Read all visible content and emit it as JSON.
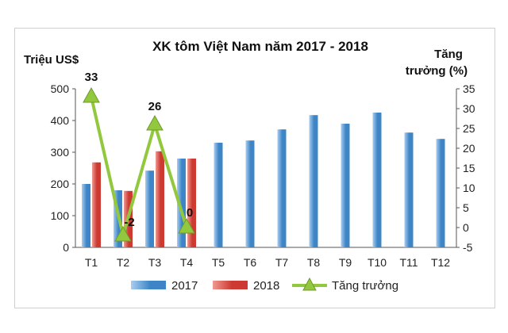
{
  "chart_data": {
    "type": "bar",
    "title": "XK tôm Việt Nam năm 2017  - 2018",
    "ylabel_left": "Triệu US$",
    "ylabel_right_line1": "Tăng",
    "ylabel_right_line2": "trưởng (%)",
    "ylim_left": [
      0,
      500
    ],
    "yticks_left": [
      0,
      100,
      200,
      300,
      400,
      500
    ],
    "ylim_right": [
      -5,
      35
    ],
    "yticks_right": [
      -5,
      0,
      5,
      10,
      15,
      20,
      25,
      30,
      35
    ],
    "categories": [
      "T1",
      "T2",
      "T3",
      "T4",
      "T5",
      "T6",
      "T7",
      "T8",
      "T9",
      "T10",
      "T11",
      "T12"
    ],
    "series": [
      {
        "name": "2017",
        "type": "bar",
        "axis": "left",
        "color": "#3d85c6",
        "values": [
          200,
          180,
          242,
          280,
          330,
          337,
          372,
          417,
          390,
          425,
          362,
          342
        ]
      },
      {
        "name": "2018",
        "type": "bar",
        "axis": "left",
        "color": "#cc3a32",
        "values": [
          268,
          178,
          303,
          280,
          null,
          null,
          null,
          null,
          null,
          null,
          null,
          null
        ]
      },
      {
        "name": "Tăng trưởng",
        "type": "line",
        "axis": "right",
        "color": "#92c83e",
        "values": [
          33,
          -2,
          26,
          0,
          null,
          null,
          null,
          null,
          null,
          null,
          null,
          null
        ],
        "labels": [
          "33",
          "-2",
          "26",
          "0"
        ]
      }
    ],
    "legend": "bottom",
    "grid": false
  }
}
